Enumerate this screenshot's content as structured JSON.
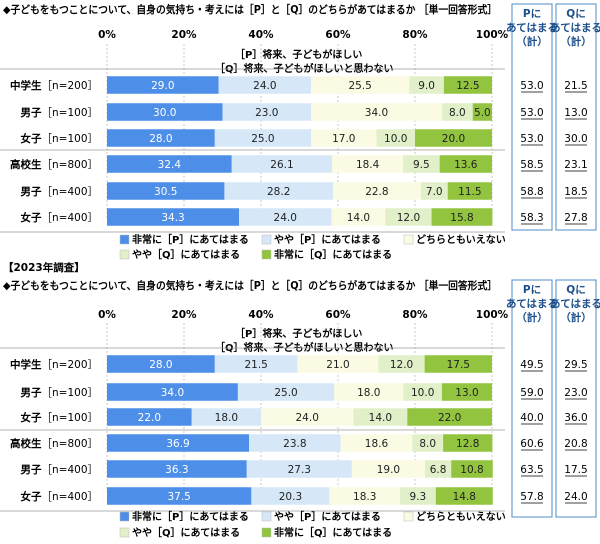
{
  "colors": {
    "s1": "#4c8ee8",
    "s2": "#d6e8f8",
    "s3": "#fbfbe4",
    "s4": "#e1f0c9",
    "s5": "#92c43f",
    "frame": "#6a9fd0"
  },
  "chart_data": [
    {
      "type": "bar",
      "title": "◆子どもをもつことについて、自身の気持ち・考えには［P］と［Q］のどちらがあてはまるか ［単一回答形式］",
      "axis_ticks": [
        "0%",
        "20%",
        "40%",
        "60%",
        "80%",
        "100%"
      ],
      "xlim": [
        0,
        100
      ],
      "statement_p": "［P］将来、子どもがほしい",
      "statement_q": "［Q］将来、子どもがほしいと思わない",
      "categories": [
        "中学生［n=200］",
        "男子［n=100］",
        "女子［n=100］",
        "高校生［n=800］",
        "男子［n=400］",
        "女子［n=400］"
      ],
      "series": [
        {
          "name": "非常に［P］にあてはまる",
          "values": [
            29.0,
            30.0,
            28.0,
            32.4,
            30.5,
            34.3
          ]
        },
        {
          "name": "やや［P］にあてはまる",
          "values": [
            24.0,
            23.0,
            25.0,
            26.1,
            28.2,
            24.0
          ]
        },
        {
          "name": "どちらともいえない",
          "values": [
            25.5,
            34.0,
            17.0,
            18.4,
            22.8,
            14.0
          ]
        },
        {
          "name": "やや［Q］にあてはまる",
          "values": [
            9.0,
            8.0,
            10.0,
            9.5,
            7.0,
            12.0
          ]
        },
        {
          "name": "非常に［Q］にあてはまる",
          "values": [
            12.5,
            5.0,
            20.0,
            13.6,
            11.5,
            15.8
          ]
        }
      ],
      "p_total_header": "Pにあてはまる（計）",
      "q_total_header": "Qにあてはまる（計）",
      "p_total": [
        "53.0",
        "53.0",
        "53.0",
        "58.5",
        "58.8",
        "58.3"
      ],
      "q_total": [
        "21.5",
        "13.0",
        "30.0",
        "23.1",
        "18.5",
        "27.8"
      ],
      "legend_position": "bottom"
    },
    {
      "type": "bar",
      "year_label": "【2023年調査】",
      "title": "◆子どもをもつことについて、自身の気持ち・考えには［P］と［Q］のどちらがあてはまるか ［単一回答形式］",
      "axis_ticks": [
        "0%",
        "20%",
        "40%",
        "60%",
        "80%",
        "100%"
      ],
      "xlim": [
        0,
        100
      ],
      "statement_p": "［P］将来、子どもがほしい",
      "statement_q": "［Q］将来、子どもがほしいと思わない",
      "categories": [
        "中学生［n=200］",
        "男子［n=100］",
        "女子［n=100］",
        "高校生［n=800］",
        "男子［n=400］",
        "女子［n=400］"
      ],
      "series": [
        {
          "name": "非常に［P］にあてはまる",
          "values": [
            28.0,
            34.0,
            22.0,
            36.9,
            36.3,
            37.5
          ]
        },
        {
          "name": "やや［P］にあてはまる",
          "values": [
            21.5,
            25.0,
            18.0,
            23.8,
            27.3,
            20.3
          ]
        },
        {
          "name": "どちらともいえない",
          "values": [
            21.0,
            18.0,
            24.0,
            18.6,
            19.0,
            18.3
          ]
        },
        {
          "name": "やや［Q］にあてはまる",
          "values": [
            12.0,
            10.0,
            14.0,
            8.0,
            6.8,
            9.3
          ]
        },
        {
          "name": "非常に［Q］にあてはまる",
          "values": [
            17.5,
            13.0,
            22.0,
            12.8,
            10.8,
            14.8
          ]
        }
      ],
      "p_total_header": "Pにあてはまる（計）",
      "q_total_header": "Qにあてはまる（計）",
      "p_total": [
        "49.5",
        "59.0",
        "40.0",
        "60.6",
        "63.5",
        "57.8"
      ],
      "q_total": [
        "29.5",
        "23.0",
        "36.0",
        "20.8",
        "17.5",
        "24.0"
      ],
      "legend_position": "bottom"
    }
  ]
}
